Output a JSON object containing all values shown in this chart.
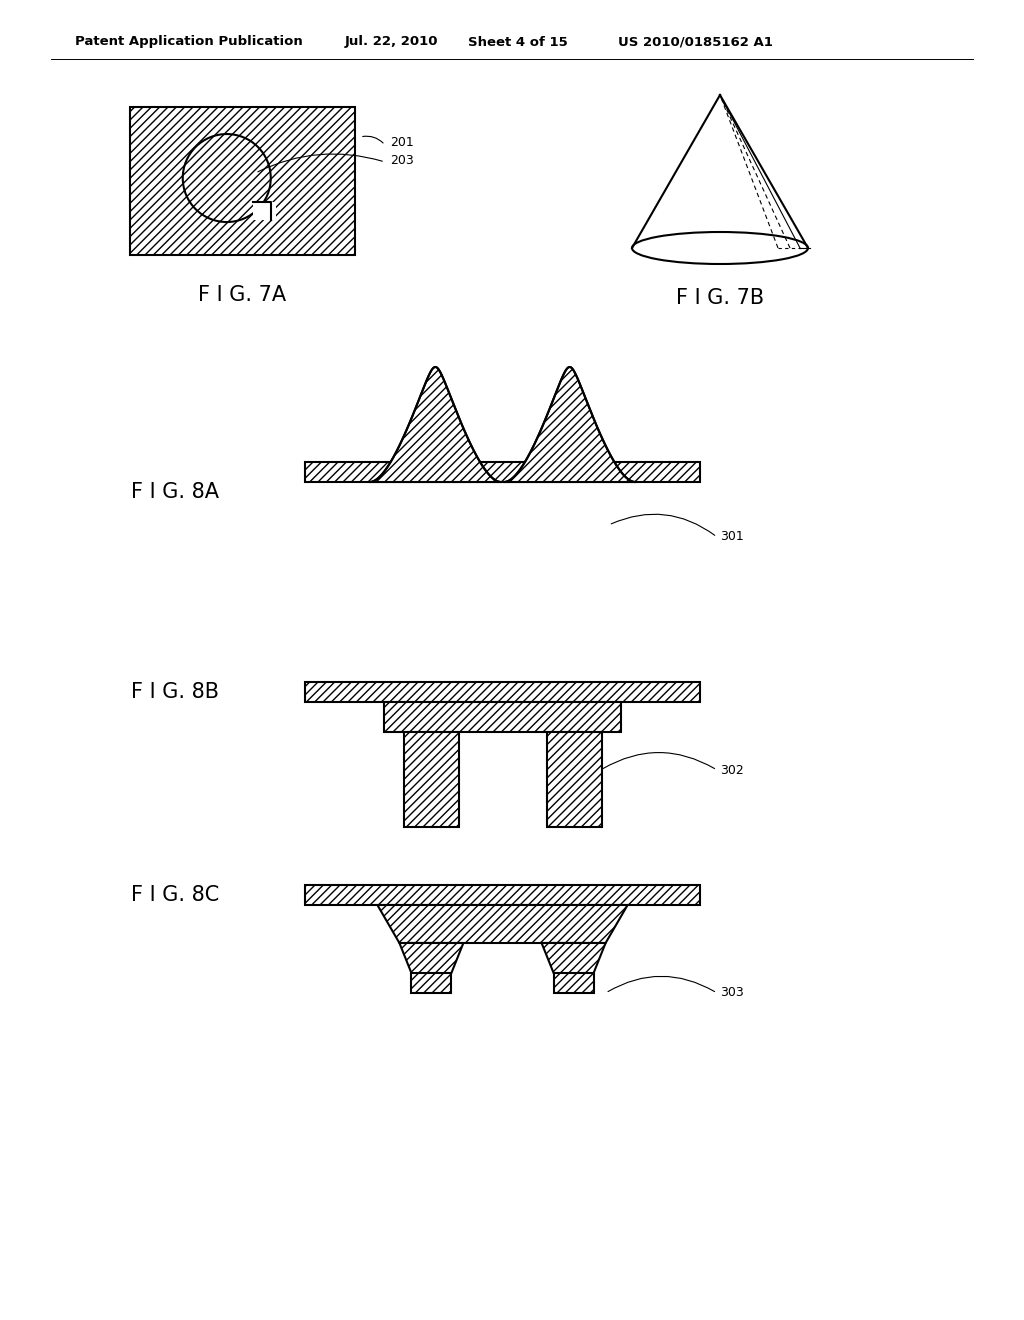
{
  "background_color": "#ffffff",
  "header_text": "Patent Application Publication",
  "header_date": "Jul. 22, 2010",
  "header_sheet": "Sheet 4 of 15",
  "header_patent": "US 2010/0185162 A1",
  "fig7a_label": "F I G. 7A",
  "fig7b_label": "F I G. 7B",
  "fig8a_label": "F I G. 8A",
  "fig8b_label": "F I G. 8B",
  "fig8c_label": "F I G. 8C",
  "ref_201": "201",
  "ref_203": "203",
  "ref_301": "301",
  "ref_302": "302",
  "ref_303": "303",
  "line_color": "#000000",
  "line_width": 1.5,
  "thin_line": 0.8
}
